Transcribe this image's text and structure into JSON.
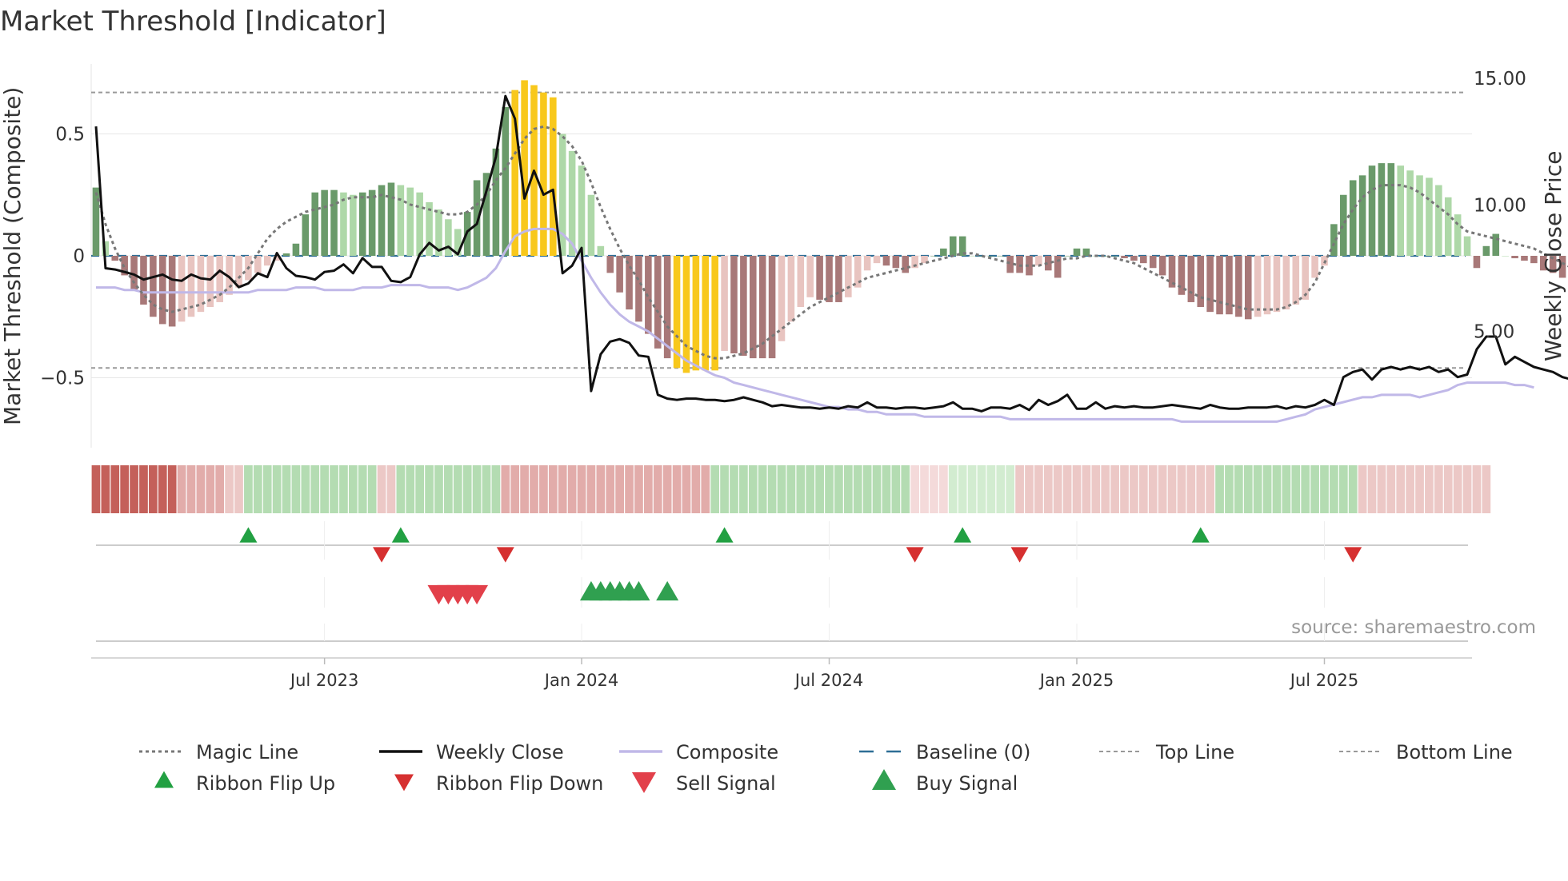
{
  "chart_data": {
    "type": "bar",
    "title": "Market Threshold [Indicator]",
    "ylabel_left": "Market Threshold (Composite)",
    "ylabel_right": "Weekly Close Price",
    "ylim_left": [
      -0.78,
      0.78
    ],
    "ylim_right": [
      0,
      15.5
    ],
    "left_ticks": [
      {
        "v": 0.5,
        "label": "0.5"
      },
      {
        "v": 0,
        "label": "0"
      },
      {
        "v": -0.5,
        "label": "−0.5"
      }
    ],
    "right_ticks": [
      {
        "v": 15,
        "label": "15.00"
      },
      {
        "v": 10,
        "label": "10.00"
      },
      {
        "v": 5,
        "label": "5.00"
      }
    ],
    "x_ticks": [
      {
        "week": 24,
        "label": "Jul 2023"
      },
      {
        "week": 51,
        "label": "Jan 2024"
      },
      {
        "week": 77,
        "label": "Jul 2024"
      },
      {
        "week": 103,
        "label": "Jan 2025"
      },
      {
        "week": 129,
        "label": "Jul 2025"
      }
    ],
    "weeks": 145,
    "top_line": 0.67,
    "bottom_line": -0.46,
    "histogram": [
      0.28,
      0.06,
      -0.02,
      -0.08,
      -0.14,
      -0.2,
      -0.25,
      -0.28,
      -0.29,
      -0.27,
      -0.25,
      -0.23,
      -0.21,
      -0.19,
      -0.16,
      -0.13,
      -0.1,
      -0.07,
      -0.04,
      -0.02,
      0.01,
      0.05,
      0.17,
      0.26,
      0.27,
      0.27,
      0.26,
      0.25,
      0.26,
      0.27,
      0.29,
      0.3,
      0.29,
      0.28,
      0.26,
      0.22,
      0.19,
      0.15,
      0.11,
      0.18,
      0.31,
      0.34,
      0.44,
      0.61,
      0.68,
      0.72,
      0.7,
      0.67,
      0.65,
      0.5,
      0.43,
      0.37,
      0.25,
      0.04,
      -0.07,
      -0.15,
      -0.22,
      -0.27,
      -0.32,
      -0.38,
      -0.42,
      -0.46,
      -0.48,
      -0.47,
      -0.47,
      -0.47,
      -0.39,
      -0.4,
      -0.41,
      -0.42,
      -0.42,
      -0.42,
      -0.35,
      -0.27,
      -0.21,
      -0.17,
      -0.18,
      -0.19,
      -0.19,
      -0.17,
      -0.13,
      -0.06,
      -0.03,
      -0.04,
      -0.05,
      -0.07,
      -0.05,
      -0.03,
      0.0,
      0.03,
      0.08,
      0.08,
      0.0,
      0.0,
      0.0,
      0.0,
      -0.07,
      -0.07,
      -0.08,
      -0.04,
      -0.06,
      -0.09,
      -0.0,
      0.03,
      0.03,
      0.0,
      0.0,
      -0.0,
      -0.01,
      -0.02,
      -0.03,
      -0.05,
      -0.08,
      -0.13,
      -0.16,
      -0.19,
      -0.21,
      -0.23,
      -0.24,
      -0.24,
      -0.25,
      -0.26,
      -0.25,
      -0.24,
      -0.23,
      -0.22,
      -0.2,
      -0.18,
      -0.09,
      -0.04,
      0.13,
      0.25,
      0.31,
      0.33,
      0.37,
      0.38,
      0.38,
      0.37,
      0.35,
      0.33,
      0.32,
      0.29,
      0.24,
      0.17,
      0.08,
      -0.05,
      0.04,
      0.09,
      0.0,
      -0.01,
      -0.02,
      -0.03,
      -0.06,
      -0.07,
      -0.09,
      -0.11,
      -0.11
    ],
    "series": [
      {
        "name": "Magic Line",
        "axis": "left",
        "values": [
          0.26,
          0.13,
          0.03,
          -0.05,
          -0.11,
          -0.16,
          -0.2,
          -0.22,
          -0.23,
          -0.22,
          -0.21,
          -0.2,
          -0.18,
          -0.16,
          -0.13,
          -0.09,
          -0.05,
          0.01,
          0.07,
          0.11,
          0.14,
          0.16,
          0.18,
          0.19,
          0.2,
          0.21,
          0.23,
          0.24,
          0.24,
          0.24,
          0.25,
          0.24,
          0.23,
          0.21,
          0.2,
          0.19,
          0.18,
          0.17,
          0.17,
          0.18,
          0.21,
          0.25,
          0.31,
          0.36,
          0.42,
          0.48,
          0.52,
          0.53,
          0.52,
          0.49,
          0.45,
          0.39,
          0.3,
          0.2,
          0.11,
          0.03,
          -0.04,
          -0.1,
          -0.17,
          -0.23,
          -0.29,
          -0.33,
          -0.37,
          -0.39,
          -0.41,
          -0.42,
          -0.42,
          -0.41,
          -0.4,
          -0.38,
          -0.36,
          -0.33,
          -0.3,
          -0.27,
          -0.24,
          -0.21,
          -0.19,
          -0.17,
          -0.15,
          -0.13,
          -0.11,
          -0.09,
          -0.08,
          -0.07,
          -0.06,
          -0.05,
          -0.04,
          -0.03,
          -0.02,
          -0.01,
          0.0,
          0.01,
          0.01,
          0.0,
          -0.01,
          -0.02,
          -0.03,
          -0.04,
          -0.04,
          -0.04,
          -0.03,
          -0.02,
          -0.01,
          -0.01,
          0.0,
          0.0,
          0.0,
          -0.01,
          -0.02,
          -0.03,
          -0.05,
          -0.07,
          -0.09,
          -0.11,
          -0.13,
          -0.15,
          -0.17,
          -0.18,
          -0.19,
          -0.2,
          -0.21,
          -0.22,
          -0.22,
          -0.22,
          -0.22,
          -0.21,
          -0.19,
          -0.16,
          -0.11,
          -0.03,
          0.05,
          0.13,
          0.19,
          0.24,
          0.27,
          0.29,
          0.29,
          0.29,
          0.28,
          0.26,
          0.23,
          0.2,
          0.17,
          0.13,
          0.1,
          0.09,
          0.08,
          0.07,
          0.06,
          0.05,
          0.04,
          0.03,
          0.01,
          -0.01,
          -0.03,
          -0.05,
          -0.07
        ]
      },
      {
        "name": "Composite",
        "axis": "left",
        "values": [
          -0.13,
          -0.13,
          -0.13,
          -0.14,
          -0.14,
          -0.15,
          -0.15,
          -0.15,
          -0.15,
          -0.15,
          -0.15,
          -0.15,
          -0.15,
          -0.15,
          -0.15,
          -0.15,
          -0.15,
          -0.14,
          -0.14,
          -0.14,
          -0.14,
          -0.13,
          -0.13,
          -0.13,
          -0.14,
          -0.14,
          -0.14,
          -0.14,
          -0.13,
          -0.13,
          -0.13,
          -0.12,
          -0.12,
          -0.12,
          -0.12,
          -0.13,
          -0.13,
          -0.13,
          -0.14,
          -0.13,
          -0.11,
          -0.09,
          -0.05,
          0.02,
          0.08,
          0.1,
          0.11,
          0.11,
          0.11,
          0.09,
          0.05,
          -0.02,
          -0.09,
          -0.15,
          -0.2,
          -0.24,
          -0.27,
          -0.29,
          -0.31,
          -0.34,
          -0.37,
          -0.4,
          -0.43,
          -0.45,
          -0.47,
          -0.49,
          -0.5,
          -0.52,
          -0.53,
          -0.54,
          -0.55,
          -0.56,
          -0.57,
          -0.58,
          -0.59,
          -0.6,
          -0.61,
          -0.62,
          -0.62,
          -0.63,
          -0.63,
          -0.64,
          -0.64,
          -0.65,
          -0.65,
          -0.65,
          -0.65,
          -0.66,
          -0.66,
          -0.66,
          -0.66,
          -0.66,
          -0.66,
          -0.66,
          -0.66,
          -0.66,
          -0.67,
          -0.67,
          -0.67,
          -0.67,
          -0.67,
          -0.67,
          -0.67,
          -0.67,
          -0.67,
          -0.67,
          -0.67,
          -0.67,
          -0.67,
          -0.67,
          -0.67,
          -0.67,
          -0.67,
          -0.67,
          -0.68,
          -0.68,
          -0.68,
          -0.68,
          -0.68,
          -0.68,
          -0.68,
          -0.68,
          -0.68,
          -0.68,
          -0.68,
          -0.67,
          -0.66,
          -0.65,
          -0.63,
          -0.62,
          -0.61,
          -0.6,
          -0.59,
          -0.58,
          -0.58,
          -0.57,
          -0.57,
          -0.57,
          -0.57,
          -0.58,
          -0.57,
          -0.56,
          -0.55,
          -0.53,
          -0.52,
          -0.52,
          -0.52,
          -0.52,
          -0.52,
          -0.53,
          -0.53,
          -0.54
        ]
      },
      {
        "name": "Weekly Close",
        "axis": "right",
        "values": [
          13.1,
          7.5,
          7.45,
          7.35,
          7.25,
          7.05,
          7.15,
          7.25,
          7.05,
          7.0,
          7.25,
          7.1,
          7.05,
          7.4,
          7.15,
          6.75,
          6.9,
          7.3,
          7.15,
          8.1,
          7.5,
          7.2,
          7.15,
          7.05,
          7.35,
          7.4,
          7.65,
          7.3,
          7.9,
          7.55,
          7.55,
          7.0,
          6.95,
          7.15,
          8.05,
          8.5,
          8.2,
          8.35,
          8.05,
          8.95,
          9.25,
          10.55,
          11.9,
          14.3,
          13.4,
          10.25,
          11.35,
          10.4,
          10.6,
          7.3,
          7.6,
          8.3,
          2.65,
          4.1,
          4.6,
          4.7,
          4.55,
          4.05,
          4.0,
          2.5,
          2.35,
          2.3,
          2.35,
          2.35,
          2.3,
          2.3,
          2.25,
          2.3,
          2.4,
          2.3,
          2.2,
          2.05,
          2.1,
          2.05,
          2.0,
          2.0,
          1.95,
          2.0,
          1.95,
          2.05,
          2.0,
          2.2,
          2.0,
          2.0,
          1.95,
          2.0,
          2.0,
          1.95,
          2.0,
          2.05,
          2.2,
          1.95,
          1.95,
          1.85,
          2.0,
          2.0,
          1.95,
          2.1,
          1.9,
          2.3,
          2.1,
          2.25,
          2.5,
          1.95,
          1.95,
          2.2,
          1.95,
          2.05,
          2.0,
          2.05,
          2.0,
          2.0,
          2.05,
          2.1,
          2.05,
          2.0,
          1.95,
          2.1,
          2.0,
          1.95,
          1.95,
          2.0,
          2.0,
          2.0,
          2.05,
          1.95,
          2.05,
          2.0,
          2.1,
          2.3,
          2.1,
          3.2,
          3.4,
          3.5,
          3.1,
          3.5,
          3.6,
          3.5,
          3.6,
          3.5,
          3.6,
          3.4,
          3.5,
          3.2,
          3.3,
          4.3,
          4.8,
          4.8,
          3.7,
          4.0,
          3.8,
          3.6,
          3.5,
          3.4,
          3.2,
          3.1,
          3.0
        ]
      }
    ],
    "ribbon": {
      "rows": [
        "red_dark",
        "red_dark",
        "red_dark",
        "red_dark",
        "red_dark",
        "red_dark",
        "red_dark",
        "red_dark",
        "red_dark",
        "red_mid",
        "red_mid",
        "red_mid",
        "red_mid",
        "red_mid",
        "red_light",
        "red_light",
        "green_mid",
        "green_mid",
        "green_mid",
        "green_mid",
        "green_mid",
        "green_mid",
        "green_mid",
        "green_mid",
        "green_mid",
        "green_mid",
        "green_mid",
        "green_mid",
        "green_mid",
        "green_mid",
        "red_light",
        "red_light",
        "green_mid",
        "green_mid",
        "green_mid",
        "green_mid",
        "green_mid",
        "green_mid",
        "green_mid",
        "green_mid",
        "green_mid",
        "green_mid",
        "green_mid",
        "red_mid",
        "red_mid",
        "red_mid",
        "red_mid",
        "red_mid",
        "red_mid",
        "red_mid",
        "red_mid",
        "red_mid",
        "red_mid",
        "red_mid",
        "red_mid",
        "red_mid",
        "red_mid",
        "red_mid",
        "red_mid",
        "red_mid",
        "red_mid",
        "red_mid",
        "red_mid",
        "red_mid",
        "red_mid",
        "green_mid",
        "green_mid",
        "green_mid",
        "green_mid",
        "green_mid",
        "green_mid",
        "green_mid",
        "green_mid",
        "green_mid",
        "green_mid",
        "green_mid",
        "green_mid",
        "green_mid",
        "green_mid",
        "green_mid",
        "green_mid",
        "green_mid",
        "green_mid",
        "green_mid",
        "green_mid",
        "green_mid",
        "red_pale",
        "red_pale",
        "red_pale",
        "red_pale",
        "green_light",
        "green_light",
        "green_light",
        "green_light",
        "green_light",
        "green_light",
        "green_light",
        "red_light",
        "red_light",
        "red_light",
        "red_light",
        "red_light",
        "red_light",
        "red_light",
        "red_light",
        "red_light",
        "red_light",
        "red_light",
        "red_light",
        "red_light",
        "red_light",
        "red_light",
        "red_light",
        "red_light",
        "red_light",
        "red_light",
        "red_light",
        "red_light",
        "green_mid",
        "green_mid",
        "green_mid",
        "green_mid",
        "green_mid",
        "green_mid",
        "green_mid",
        "green_mid",
        "green_mid",
        "green_mid",
        "green_mid",
        "green_mid",
        "green_mid",
        "green_mid",
        "green_mid",
        "red_light",
        "red_light",
        "red_light",
        "red_light",
        "red_light",
        "red_light",
        "red_light",
        "red_light",
        "red_light",
        "red_light",
        "red_light",
        "red_light",
        "red_light",
        "red_light"
      ]
    },
    "ribbon_flip_up": [
      16,
      32,
      66,
      91,
      116
    ],
    "ribbon_flip_down": [
      30,
      43,
      86,
      97,
      132
    ],
    "sell_signal": [
      36,
      37,
      38,
      39,
      40
    ],
    "buy_signal": [
      52,
      53,
      54,
      55,
      56,
      57,
      60
    ],
    "legend": [
      {
        "name": "Magic Line",
        "style": "dotted"
      },
      {
        "name": "Weekly Close",
        "style": "solid"
      },
      {
        "name": "Composite",
        "style": "lavender"
      },
      {
        "name": "Baseline (0)",
        "style": "dashed"
      },
      {
        "name": "Top Line",
        "style": "thin-dashed"
      },
      {
        "name": "Bottom Line",
        "style": "thin-dashed"
      },
      {
        "name": "Ribbon Flip Up",
        "style": "tri-up-small"
      },
      {
        "name": "Ribbon Flip Down",
        "style": "tri-down-small"
      },
      {
        "name": "Sell Signal",
        "style": "tri-down-big"
      },
      {
        "name": "Buy Signal",
        "style": "tri-up-big"
      }
    ],
    "source": "source: sharemaestro.com",
    "colors": {
      "pos_dark": "#6a9a6a",
      "pos_light": "#aed8a8",
      "neg_dark": "#a87878",
      "neg_light": "#e8c4c0",
      "extreme": "#f8c81c",
      "close": "#111111",
      "composite": "#c0b8e8",
      "magic": "#777777",
      "baseline": "#2e6e96",
      "guide": "#999999",
      "red_dark": "#c4605a",
      "red_mid": "#e2acaa",
      "red_light": "#ecc8c6",
      "red_pale": "#f4dada",
      "green_mid": "#b4dcb2",
      "green_light": "#d2ecd0",
      "flip_up": "#22a042",
      "flip_down": "#d63030",
      "sell": "#e2404a",
      "buy": "#30a050"
    }
  }
}
